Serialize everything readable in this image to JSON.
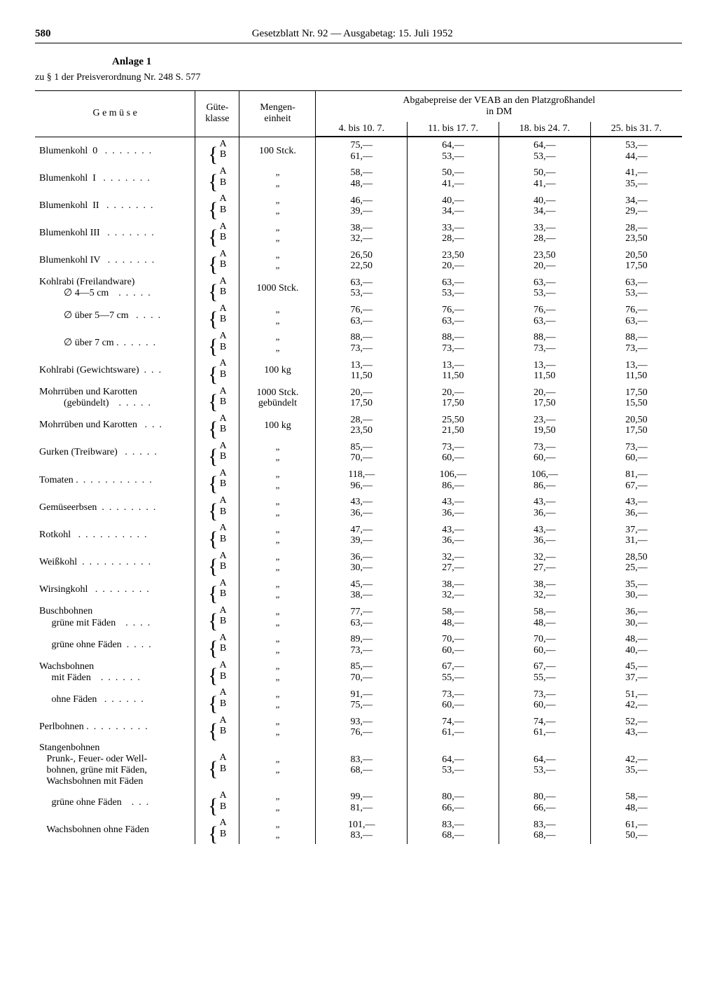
{
  "page_number": "580",
  "header_title": "Gesetzblatt Nr. 92 — Ausgabetag: 15. Juli 1952",
  "anlage": "Anlage 1",
  "subref": "zu § 1 der Preisverordnung Nr. 248 S. 577",
  "head": {
    "gemuse": "G e m ü s e",
    "klasse": "Güte-\nklasse",
    "einheit": "Mengen-\neinheit",
    "price_header": "Abgabepreise der VEAB an den Platzgroßhandel\nin DM",
    "periods": [
      "4. bis 10. 7.",
      "11. bis 17. 7.",
      "18. bis 24. 7.",
      "25. bis 31. 7."
    ]
  },
  "rows": [
    {
      "label": "Blumenkohl  0   .  .  .  .  .  .  .",
      "unit": "100 Stck.",
      "A": [
        "75,—",
        "64,—",
        "64,—",
        "53,—"
      ],
      "B": [
        "61,—",
        "53,—",
        "53,—",
        "44,—"
      ],
      "gap": "row-sep"
    },
    {
      "label": "Blumenkohl  I   .  .  .  .  .  .  .",
      "unit": "„",
      "A": [
        "58,—",
        "50,—",
        "50,—",
        "41,—"
      ],
      "B": [
        "48,—",
        "41,—",
        "41,—",
        "35,—"
      ],
      "gap": "row-sep"
    },
    {
      "label": "Blumenkohl  II   .  .  .  .  .  .  .",
      "unit": "„",
      "A": [
        "46,—",
        "40,—",
        "40,—",
        "34,—"
      ],
      "B": [
        "39,—",
        "34,—",
        "34,—",
        "29,—"
      ],
      "gap": "row-sep"
    },
    {
      "label": "Blumenkohl III   .  .  .  .  .  .  .",
      "unit": "„",
      "A": [
        "38,—",
        "33,—",
        "33,—",
        "28,—"
      ],
      "B": [
        "32,—",
        "28,—",
        "28,—",
        "23,50"
      ],
      "gap": "row-sep"
    },
    {
      "label": "Blumenkohl IV   .  .  .  .  .  .  .",
      "unit": "„",
      "A": [
        "26,50",
        "23,50",
        "23,50",
        "20,50"
      ],
      "B": [
        "22,50",
        "20,—",
        "20,—",
        "17,50"
      ],
      "gap": "row-sep"
    },
    {
      "label": "Kohlrabi (Freilandware)\n          ∅ 4—5 cm    .  .  .  .  .",
      "unit": "1000 Stck.",
      "A": [
        "63,—",
        "63,—",
        "63,—",
        "63,—"
      ],
      "B": [
        "53,—",
        "53,—",
        "53,—",
        "53,—"
      ],
      "gap": "row-sep"
    },
    {
      "label": "          ∅ über 5—7 cm   .  .  .  .",
      "unit": "„",
      "A": [
        "76,—",
        "76,—",
        "76,—",
        "76,—"
      ],
      "B": [
        "63,—",
        "63,—",
        "63,—",
        "63,—"
      ],
      "gap": "row-sep"
    },
    {
      "label": "          ∅ über 7 cm .  .  .  .  .  .",
      "unit": "„",
      "A": [
        "88,—",
        "88,—",
        "88,—",
        "88,—"
      ],
      "B": [
        "73,—",
        "73,—",
        "73,—",
        "73,—"
      ],
      "gap": "row-sep"
    },
    {
      "label": "Kohlrabi (Gewichtsware)  .  .  .",
      "unit": "100 kg",
      "A": [
        "13,—",
        "13,—",
        "13,—",
        "13,—"
      ],
      "B": [
        "11,50",
        "11,50",
        "11,50",
        "11,50"
      ],
      "gap": "row-sep"
    },
    {
      "label": "Mohrrüben und Karotten\n          (gebündelt)    .  .  .  .  .",
      "unit": "1000 Stck.\ngebündelt",
      "A": [
        "20,—",
        "20,—",
        "20,—",
        "17,50"
      ],
      "B": [
        "17,50",
        "17,50",
        "17,50",
        "15,50"
      ],
      "gap": "row-sep"
    },
    {
      "label": "Mohrrüben und Karotten   .  .  .",
      "unit": "100 kg",
      "A": [
        "28,—",
        "25,50",
        "23,—",
        "20,50"
      ],
      "B": [
        "23,50",
        "21,50",
        "19,50",
        "17,50"
      ],
      "gap": "row-sep"
    },
    {
      "label": "Gurken (Treibware)   .  .  .  .  .",
      "unit": "„",
      "A": [
        "85,—",
        "73,—",
        "73,—",
        "73,—"
      ],
      "B": [
        "70,—",
        "60,—",
        "60,—",
        "60,—"
      ],
      "gap": "row-sep"
    },
    {
      "label": "Tomaten .  .  .  .  .  .  .  .  .  .  .",
      "unit": "„",
      "A": [
        "118,—",
        "106,—",
        "106,—",
        "81,—"
      ],
      "B": [
        "96,—",
        "86,—",
        "86,—",
        "67,—"
      ],
      "gap": "row-sep"
    },
    {
      "label": "Gemüseerbsen  .  .  .  .  .  .  .  .",
      "unit": "„",
      "A": [
        "43,—",
        "43,—",
        "43,—",
        "43,—"
      ],
      "B": [
        "36,—",
        "36,—",
        "36,—",
        "36,—"
      ],
      "gap": "row-sep"
    },
    {
      "label": "Rotkohl   .  .  .  .  .  .  .  .  .  .",
      "unit": "„",
      "A": [
        "47,—",
        "43,—",
        "43,—",
        "37,—"
      ],
      "B": [
        "39,—",
        "36,—",
        "36,—",
        "31,—"
      ],
      "gap": "row-sep"
    },
    {
      "label": "Weißkohl  .  .  .  .  .  .  .  .  .  .",
      "unit": "„",
      "A": [
        "36,—",
        "32,—",
        "32,—",
        "28,50"
      ],
      "B": [
        "30,—",
        "27,—",
        "27,—",
        "25,—"
      ],
      "gap": "row-sep"
    },
    {
      "label": "Wirsingkohl   .  .  .  .  .  .  .  .",
      "unit": "„",
      "A": [
        "45,—",
        "38,—",
        "38,—",
        "35,—"
      ],
      "B": [
        "38,—",
        "32,—",
        "32,—",
        "30,—"
      ],
      "gap": "row-sep"
    },
    {
      "label": "Buschbohnen\n     grüne mit Fäden    .  .  .  .",
      "unit": "„",
      "A": [
        "77,—",
        "58,—",
        "58,—",
        "36,—"
      ],
      "B": [
        "63,—",
        "48,—",
        "48,—",
        "30,—"
      ],
      "gap": "section-gap"
    },
    {
      "label": "     grüne ohne Fäden  .  .  .  .",
      "unit": "„",
      "A": [
        "89,—",
        "70,—",
        "70,—",
        "48,—"
      ],
      "B": [
        "73,—",
        "60,—",
        "60,—",
        "40,—"
      ],
      "gap": "row-sep"
    },
    {
      "label": "Wachsbohnen\n     mit Fäden    .  .  .  .  .  .",
      "unit": "„",
      "A": [
        "85,—",
        "67,—",
        "67,—",
        "45,—"
      ],
      "B": [
        "70,—",
        "55,—",
        "55,—",
        "37,—"
      ],
      "gap": "row-sep"
    },
    {
      "label": "     ohne Fäden   .  .  .  .  .  .",
      "unit": "„",
      "A": [
        "91,—",
        "73,—",
        "73,—",
        "51,—"
      ],
      "B": [
        "75,—",
        "60,—",
        "60,—",
        "42,—"
      ],
      "gap": "row-sep"
    },
    {
      "label": "Perlbohnen .  .  .  .  .  .  .  .  .",
      "unit": "„",
      "A": [
        "93,—",
        "74,—",
        "74,—",
        "52,—"
      ],
      "B": [
        "76,—",
        "61,—",
        "61,—",
        "43,—"
      ],
      "gap": "row-sep"
    },
    {
      "label": "Stangenbohnen\n   Prunk-, Feuer- oder Well-\n   bohnen, grüne mit Fäden,\n   Wachsbohnen mit Fäden",
      "unit": "„",
      "A": [
        "83,—",
        "64,—",
        "64,—",
        "42,—"
      ],
      "B": [
        "68,—",
        "53,—",
        "53,—",
        "35,—"
      ],
      "gap": "row-sep"
    },
    {
      "label": "     grüne ohne Fäden    .  .  .",
      "unit": "„",
      "A": [
        "99,—",
        "80,—",
        "80,—",
        "58,—"
      ],
      "B": [
        "81,—",
        "66,—",
        "66,—",
        "48,—"
      ],
      "gap": "row-sep"
    },
    {
      "label": "   Wachsbohnen ohne Fäden",
      "unit": "„",
      "A": [
        "101,—",
        "83,—",
        "83,—",
        "61,—"
      ],
      "B": [
        "83,—",
        "68,—",
        "68,—",
        "50,—"
      ],
      "gap": "row-sep"
    }
  ]
}
